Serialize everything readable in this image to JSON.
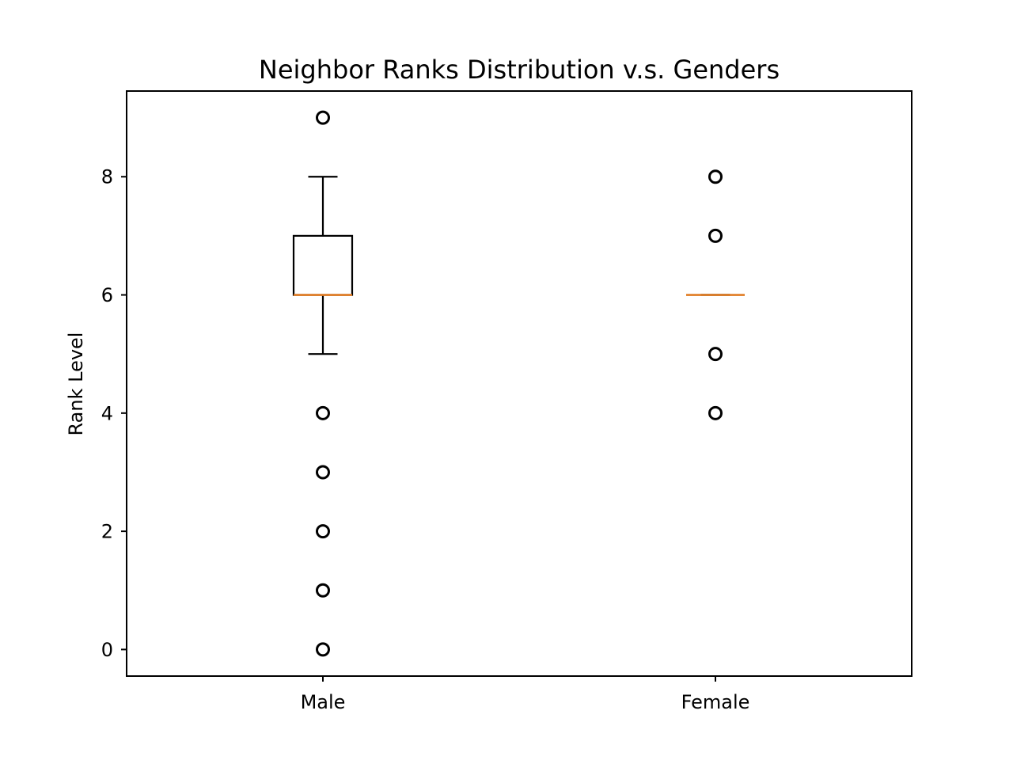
{
  "chart_data": {
    "type": "boxplot",
    "title": "Neighbor Ranks Distribution v.s. Genders",
    "xlabel": "",
    "ylabel": "Rank Level",
    "ylim": [
      -0.45,
      9.45
    ],
    "yticks": [
      0,
      2,
      4,
      6,
      8
    ],
    "ytick_labels": [
      "0",
      "2",
      "4",
      "6",
      "8"
    ],
    "grid": false,
    "categories": [
      "Male",
      "Female"
    ],
    "boxes": [
      {
        "category": "Male",
        "q1": 6,
        "median": 6,
        "q3": 7,
        "whisker_low": 5,
        "whisker_high": 8,
        "outliers": [
          9,
          4,
          3,
          2,
          1,
          0
        ]
      },
      {
        "category": "Female",
        "q1": 6,
        "median": 6,
        "q3": 6,
        "whisker_low": 6,
        "whisker_high": 6,
        "outliers": [
          8,
          7,
          5,
          4
        ]
      }
    ],
    "colors": {
      "box": "#000000",
      "median": "#e07b22",
      "outlier": "#000000"
    }
  }
}
